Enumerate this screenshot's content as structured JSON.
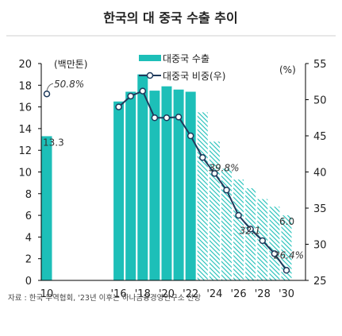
{
  "chart_data": {
    "type": "bar+line",
    "title": "한국의 대 중국 수출 추이",
    "left_unit": "(백만톤)",
    "right_unit": "(%)",
    "source": "자료 : 한국 무역협회, '23년 이후는 하나금융경영연구소 전망",
    "x_tick_labels": [
      "10",
      "'16",
      "'18",
      "'20",
      "'22",
      "'24",
      "'26",
      "'28",
      "'30"
    ],
    "y_left_ticks": [
      "0",
      "2",
      "4",
      "6",
      "8",
      "10",
      "12",
      "14",
      "16",
      "18",
      "20"
    ],
    "y_right_ticks": [
      "25",
      "30",
      "35",
      "40",
      "45",
      "50",
      "55"
    ],
    "ylim_left": [
      0,
      20
    ],
    "ylim_right": [
      25,
      55
    ],
    "years": [
      2010,
      2011,
      2012,
      2013,
      2014,
      2015,
      2016,
      2017,
      2018,
      2019,
      2020,
      2021,
      2022,
      2023,
      2024,
      2025,
      2026,
      2027,
      2028,
      2029,
      2030
    ],
    "series": [
      {
        "name": "대중국 수출",
        "type": "bar",
        "values": [
          13.3,
          null,
          null,
          null,
          null,
          null,
          16.5,
          17.4,
          19.0,
          17.5,
          17.9,
          17.6,
          17.4,
          15.5,
          12.8,
          10.3,
          9.3,
          8.5,
          7.5,
          6.8,
          6.0
        ],
        "projected_from": 2023
      },
      {
        "name": "대중국 비중(우)",
        "type": "line",
        "values": [
          50.8,
          null,
          null,
          null,
          null,
          null,
          49.0,
          50.5,
          51.2,
          47.5,
          47.5,
          47.6,
          45.0,
          42.0,
          39.8,
          37.5,
          34.0,
          32.1,
          30.5,
          28.7,
          26.4
        ]
      }
    ],
    "data_labels": {
      "bar_2010": "13.3",
      "line_2010": "50.8%",
      "line_2024": "39.8%",
      "line_2027": "32.1",
      "bar_2030": "6.0",
      "line_2030": "26.4%"
    },
    "colors": {
      "bar": "#1dbfb8",
      "bar_projected_hatch": "#1dbfb8",
      "line": "#1e3a5c",
      "marker_fill": "#ffffff",
      "grid": "none"
    },
    "legend_placement": "top-center"
  }
}
